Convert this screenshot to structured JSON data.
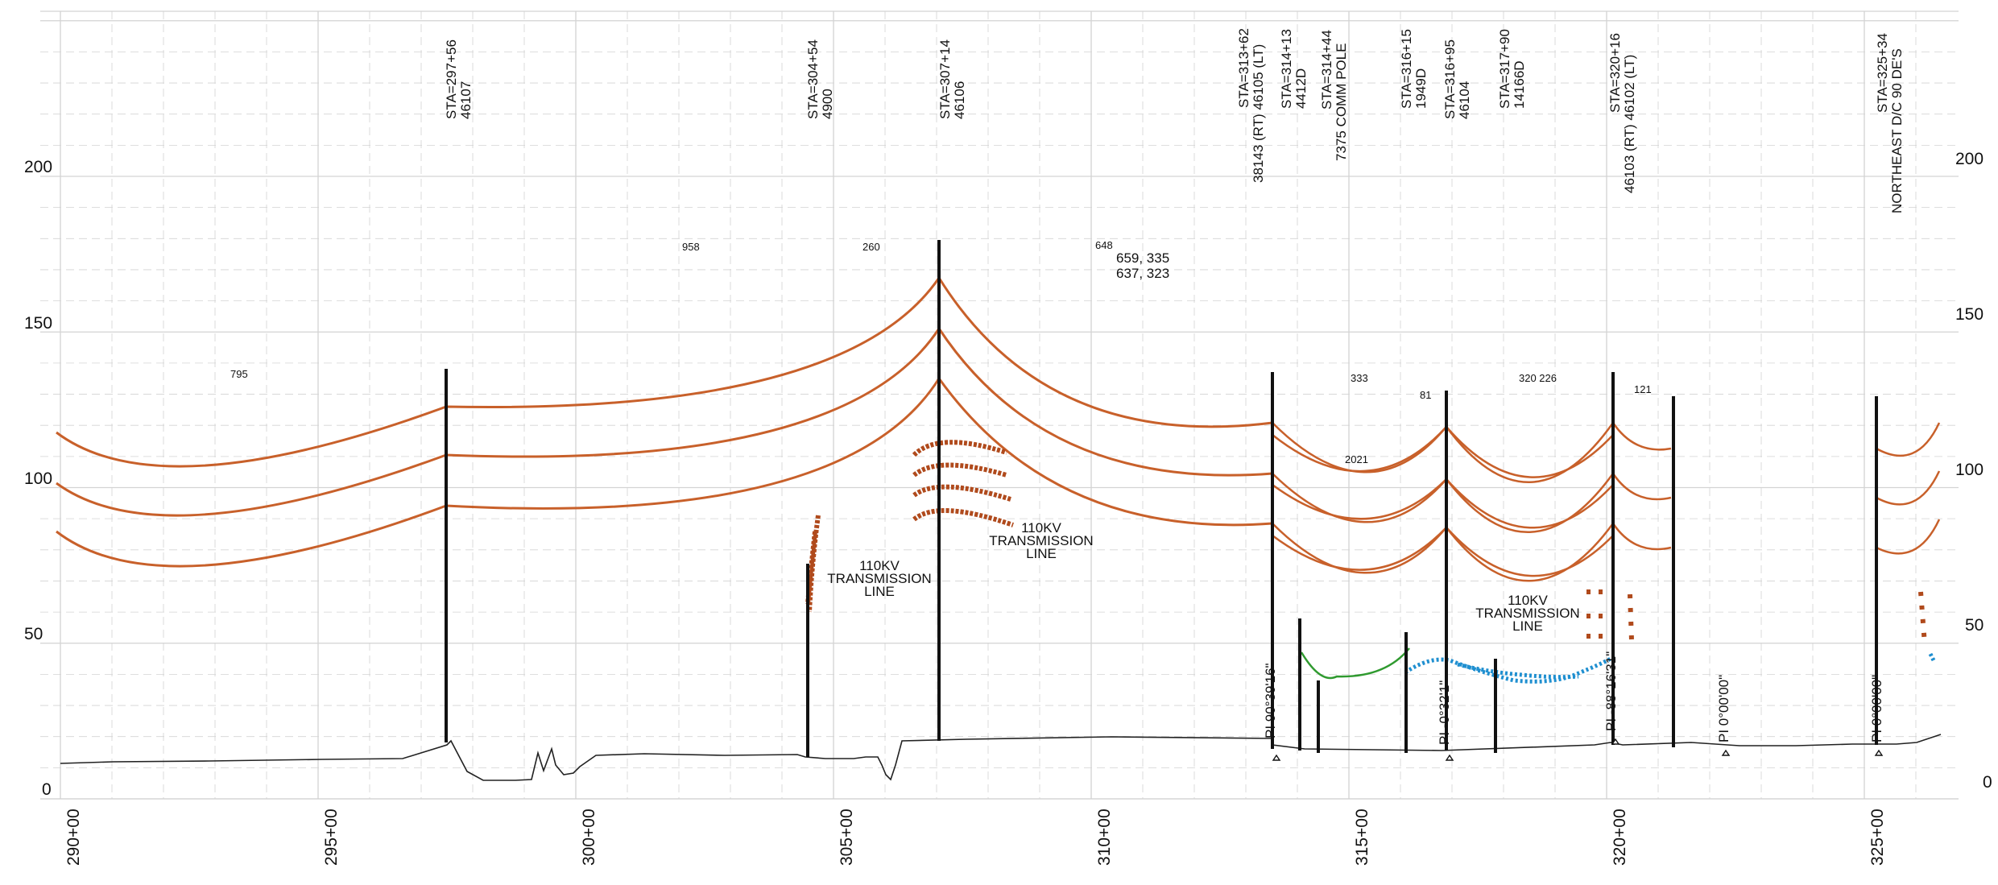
{
  "y_axis": {
    "min": 0,
    "max": 200,
    "labels_left": [
      "200",
      "150",
      "100",
      "50",
      "0"
    ],
    "labels_right": [
      "200",
      "150",
      "100",
      "50",
      "0"
    ]
  },
  "x_axis": {
    "labels": [
      "290+00",
      "295+00",
      "300+00",
      "305+00",
      "310+00",
      "315+00",
      "320+00",
      "325+00"
    ]
  },
  "stations": [
    {
      "station": 297.56,
      "text": "STA=297+56",
      "sub": "46107"
    },
    {
      "station": 304.54,
      "text": "STA=304+54",
      "sub": "4900"
    },
    {
      "station": 307.14,
      "text": "STA=307+14",
      "sub": "46106"
    },
    {
      "station": 313.62,
      "text": "STA=313+62",
      "sub": "38143 (RT) 46105 (LT)"
    },
    {
      "station": 314.13,
      "text": "STA=314+13",
      "sub": "4412D"
    },
    {
      "station": 314.44,
      "text": "STA=314+44",
      "sub": "7375 COMM POLE"
    },
    {
      "station": 316.15,
      "text": "STA=316+15",
      "sub": "1949D"
    },
    {
      "station": 316.95,
      "text": "STA=316+95",
      "sub": "46104"
    },
    {
      "station": 317.9,
      "text": "STA=317+90",
      "sub": "14166D"
    },
    {
      "station": 320.16,
      "text": "STA=320+16",
      "sub": "46103 (RT) 46102 (LT)"
    },
    {
      "station": 325.34,
      "text": "STA=325+34",
      "sub": "NORTHEAST D/C 90 DE'S"
    }
  ],
  "span_labels": [
    "795",
    "958",
    "260",
    "648",
    "659, 335",
    "637, 323",
    "333",
    "2021",
    "81",
    "320 226",
    "121"
  ],
  "line_labels": [
    {
      "l1": "110KV",
      "l2": "TRANSMISSION",
      "l3": "LINE"
    },
    {
      "l1": "110KV",
      "l2": "TRANSMISSION",
      "l3": "LINE"
    },
    {
      "l1": "110KV",
      "l2": "TRANSMISSION",
      "l3": "LINE"
    }
  ],
  "pi_labels": [
    "PI 90°39'16\"",
    "PI -0°32'1\"",
    "PI -88°16'31\"",
    "PI 0°00'00\"",
    "PI 0°00'00\""
  ],
  "colors": {
    "conductor": "#c8602a",
    "pole": "#111111",
    "ground": "#222222",
    "grid": "#d3d3d3",
    "comm_line": "#2f9a2f",
    "blue_line": "#1f8fd0",
    "insulator": "#b04a1c"
  }
}
